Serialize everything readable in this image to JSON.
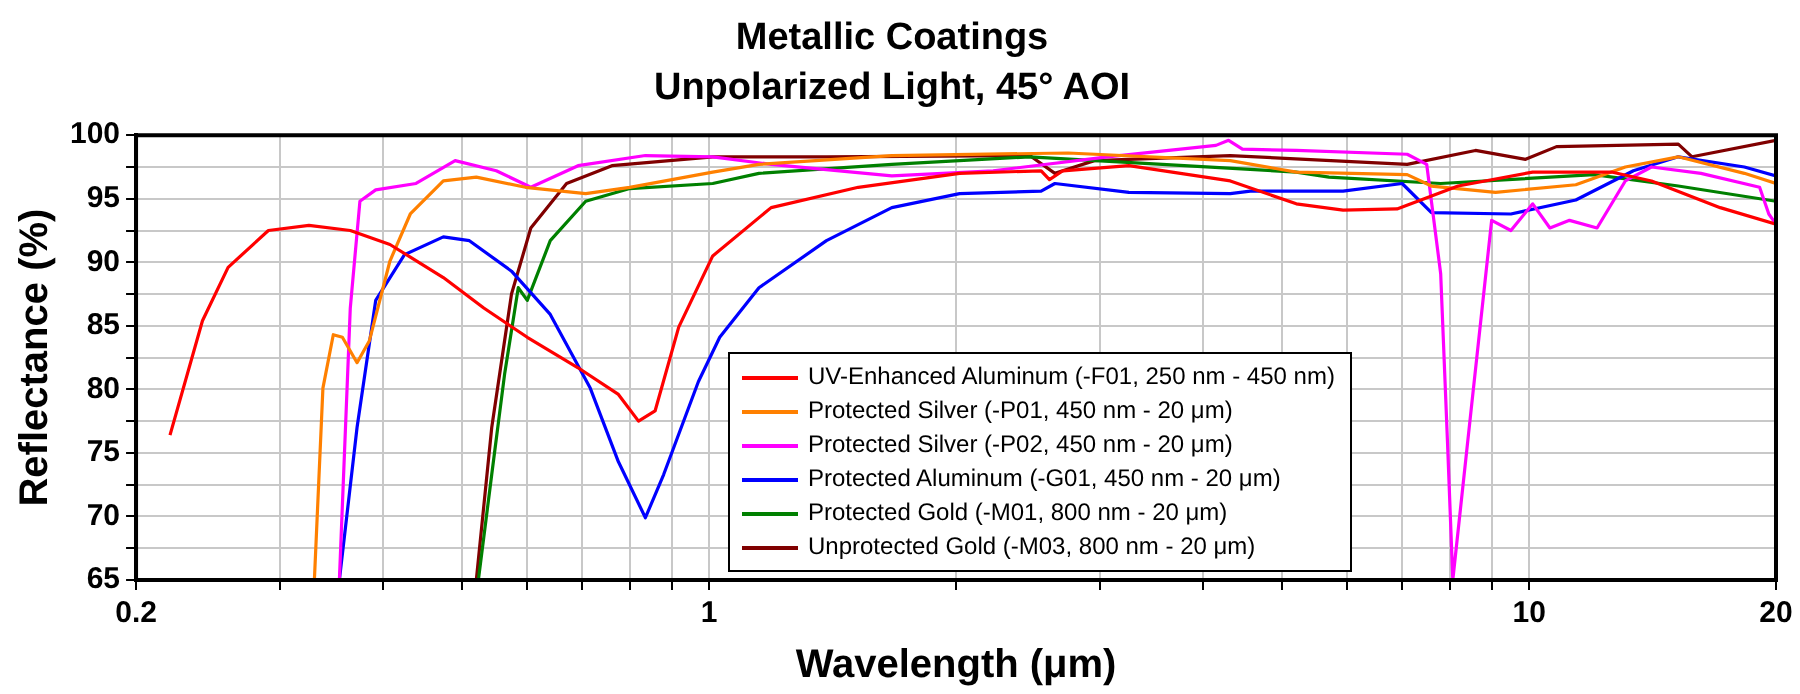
{
  "chart_data": {
    "type": "line",
    "title": "Metallic Coatings",
    "subtitle": "Unpolarized Light, 45° AOI",
    "xlabel": "Wavelength (μm)",
    "ylabel": "Reflectance (%)",
    "log": "x",
    "xlim": [
      0.2,
      20
    ],
    "ylim": [
      65,
      100
    ],
    "xticks": [
      0.2,
      {
        "value": 0.3,
        "label": null
      },
      {
        "value": 0.4,
        "label": null
      },
      {
        "value": 0.5,
        "label": null
      },
      {
        "value": 0.6,
        "label": null
      },
      {
        "value": 0.7,
        "label": null
      },
      {
        "value": 0.8,
        "label": null
      },
      {
        "value": 0.9,
        "label": null
      },
      1,
      {
        "value": 2,
        "label": null
      },
      {
        "value": 3,
        "label": null
      },
      {
        "value": 4,
        "label": null
      },
      {
        "value": 5,
        "label": null
      },
      {
        "value": 6,
        "label": null
      },
      {
        "value": 7,
        "label": null
      },
      {
        "value": 8,
        "label": null
      },
      {
        "value": 9,
        "label": null
      },
      10,
      20
    ],
    "yticks": [
      65,
      {
        "value": 67.5,
        "label": null
      },
      70,
      {
        "value": 72.5,
        "label": null
      },
      75,
      {
        "value": 77.5,
        "label": null
      },
      80,
      {
        "value": 82.5,
        "label": null
      },
      85,
      {
        "value": 87.5,
        "label": null
      },
      90,
      {
        "value": 92.5,
        "label": null
      },
      95,
      {
        "value": 97.5,
        "label": null
      },
      100
    ],
    "grid": true,
    "legend": "bottom",
    "marker": "none",
    "line_style": "solid",
    "series": [
      {
        "name": "UV-Enhanced Aluminum (-F01, 250 nm - 450 nm)",
        "color": "#ff0000",
        "x": [
          0.22,
          0.241,
          0.259,
          0.29,
          0.325,
          0.365,
          0.408,
          0.474,
          0.531,
          0.6,
          0.692,
          0.775,
          0.82,
          0.859,
          0.918,
          1.01,
          1.19,
          1.52,
          2.02,
          2.54,
          2.6,
          2.7,
          3.25,
          4.32,
          5.2,
          5.93,
          6.9,
          8.19,
          10.1,
          12.6,
          14.1,
          17.1,
          20
        ],
        "values": [
          76.4,
          85.4,
          89.6,
          92.5,
          92.9,
          92.5,
          91.4,
          88.8,
          86.4,
          84.1,
          81.7,
          79.6,
          77.5,
          78.3,
          84.9,
          90.5,
          94.3,
          95.9,
          97.0,
          97.2,
          96.5,
          97.2,
          97.6,
          96.4,
          94.6,
          94.1,
          94.2,
          96.0,
          97.1,
          97.1,
          96.4,
          94.3,
          93.0
        ]
      },
      {
        "name": "Protected Silver (-P01, 450 nm - 20 μm)",
        "color": "#ff8000",
        "x": [
          0.33,
          0.338,
          0.348,
          0.357,
          0.372,
          0.385,
          0.408,
          0.432,
          0.474,
          0.52,
          0.597,
          0.707,
          0.8,
          1.01,
          1.15,
          1.67,
          2.74,
          4.32,
          5.2,
          7.1,
          7.6,
          9.1,
          11.4,
          13.1,
          15.2,
          18.3,
          20
        ],
        "values": [
          65,
          80.1,
          84.3,
          84.1,
          82.1,
          83.8,
          90.1,
          93.8,
          96.4,
          96.7,
          95.9,
          95.4,
          95.9,
          97.1,
          97.7,
          98.4,
          98.6,
          98.0,
          97.1,
          96.9,
          96.0,
          95.5,
          96.1,
          97.5,
          98.3,
          97.0,
          96.2
        ]
      },
      {
        "name": "Protected Silver (-P02, 450 nm - 20 μm)",
        "color": "#ff00ff",
        "x": [
          0.354,
          0.365,
          0.375,
          0.392,
          0.439,
          0.49,
          0.55,
          0.606,
          0.692,
          0.836,
          1.01,
          1.19,
          1.67,
          2.22,
          3.06,
          4.15,
          4.3,
          4.47,
          5.2,
          7.1,
          7.5,
          7.8,
          7.95,
          8.07,
          8.5,
          9.0,
          9.5,
          10.1,
          10.6,
          11.2,
          12.1,
          13.1,
          14.1,
          16.2,
          19.1,
          19.6,
          20
        ],
        "values": [
          65,
          86.4,
          94.8,
          95.7,
          96.2,
          98.0,
          97.2,
          95.9,
          97.6,
          98.4,
          98.3,
          97.7,
          96.8,
          97.2,
          98.3,
          99.2,
          99.6,
          98.9,
          98.8,
          98.5,
          97.7,
          89.1,
          75.9,
          65,
          78.5,
          93.3,
          92.5,
          94.6,
          92.7,
          93.3,
          92.7,
          96.4,
          97.5,
          97.0,
          95.9,
          93.8,
          93.0
        ]
      },
      {
        "name": "Protected Aluminum (-G01, 450 nm - 20 μm)",
        "color": "#0000ff",
        "x": [
          0.354,
          0.372,
          0.392,
          0.425,
          0.474,
          0.51,
          0.574,
          0.64,
          0.716,
          0.775,
          0.836,
          0.88,
          0.97,
          1.03,
          1.15,
          1.39,
          1.67,
          2.02,
          2.54,
          2.64,
          3.25,
          4.32,
          4.57,
          5.93,
          7.0,
          7.6,
          9.5,
          11.4,
          13.4,
          15.2,
          18.3,
          20
        ],
        "values": [
          65,
          77.0,
          87.0,
          90.6,
          92.0,
          91.7,
          89.3,
          85.9,
          80.1,
          74.3,
          69.9,
          73.3,
          80.6,
          84.1,
          88.0,
          91.7,
          94.3,
          95.4,
          95.6,
          96.2,
          95.5,
          95.4,
          95.6,
          95.6,
          96.2,
          93.9,
          93.8,
          94.9,
          97.2,
          98.3,
          97.5,
          96.8
        ]
      },
      {
        "name": "Protected Gold (-M01, 800 nm - 20 μm)",
        "color": "#008000",
        "x": [
          0.523,
          0.543,
          0.563,
          0.585,
          0.6,
          0.64,
          0.707,
          0.8,
          1.01,
          1.15,
          1.67,
          2.46,
          3.57,
          5.2,
          5.7,
          7.8,
          12.0,
          15.2,
          20
        ],
        "values": [
          65,
          73.3,
          81.2,
          88.0,
          87.0,
          91.7,
          94.8,
          95.8,
          96.2,
          97.0,
          97.7,
          98.3,
          97.7,
          97.1,
          96.7,
          96.2,
          96.9,
          96.0,
          94.8
        ]
      },
      {
        "name": "Unprotected Gold (-M03, 800 nm - 20 μm)",
        "color": "#800000",
        "x": [
          0.52,
          0.543,
          0.574,
          0.606,
          0.67,
          0.761,
          1.01,
          1.39,
          2.46,
          2.64,
          2.95,
          4.32,
          7.1,
          8.6,
          9.9,
          10.8,
          15.2,
          15.8,
          20
        ],
        "values": [
          65,
          77.0,
          87.5,
          92.7,
          96.2,
          97.6,
          98.3,
          98.3,
          98.4,
          97.0,
          98.0,
          98.4,
          97.7,
          98.8,
          98.1,
          99.1,
          99.3,
          98.3,
          99.6
        ]
      }
    ]
  }
}
